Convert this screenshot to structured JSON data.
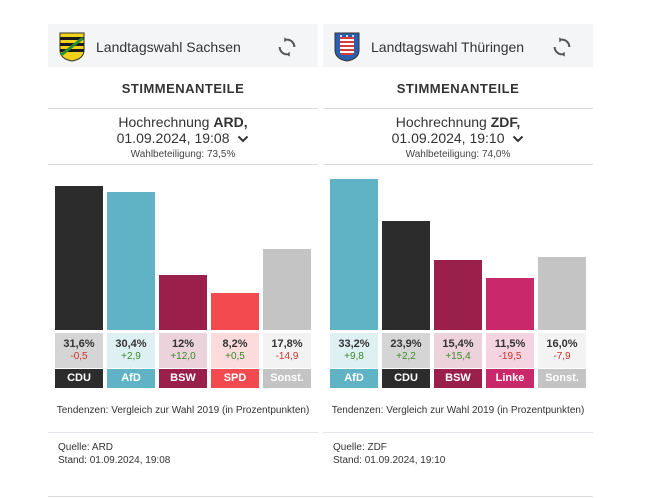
{
  "chart_data": [
    {
      "type": "bar",
      "state": "Sachsen",
      "title": "Landtagswahl Sachsen",
      "section": "STIMMENANTEILE",
      "projection_prefix": "Hochrechnung",
      "broadcaster": "ARD",
      "datetime": "01.09.2024, 19:08",
      "turnout": "Wahlbeteiligung: 73,5%",
      "categories": [
        "CDU",
        "AfD",
        "BSW",
        "SPD",
        "Sonst."
      ],
      "values": [
        31.6,
        30.4,
        12.0,
        8.2,
        17.8
      ],
      "value_labels": [
        "31,6%",
        "30,4%",
        "12%",
        "8,2%",
        "17,8%"
      ],
      "diffs": [
        "-0,5",
        "+2,9",
        "+12,0",
        "+0,5",
        "-14,9"
      ],
      "colors": [
        "#2c2c2c",
        "#5fb3c4",
        "#9b1f4b",
        "#f24a4f",
        "#c4c4c4"
      ],
      "ylim": [
        0,
        33.2
      ],
      "note": "Tendenzen: Vergleich zur Wahl 2019 (in Prozentpunkten)",
      "source": "Quelle: ARD",
      "stand": "Stand: 01.09.2024, 19:08"
    },
    {
      "type": "bar",
      "state": "Thüringen",
      "title": "Landtagswahl Thüringen",
      "section": "STIMMENANTEILE",
      "projection_prefix": "Hochrechnung",
      "broadcaster": "ZDF",
      "datetime": "01.09.2024, 19:10",
      "turnout": "Wahlbeteiligung: 74,0%",
      "categories": [
        "AfD",
        "CDU",
        "BSW",
        "Linke",
        "Sonst."
      ],
      "values": [
        33.2,
        23.9,
        15.4,
        11.5,
        16.0
      ],
      "value_labels": [
        "33,2%",
        "23,9%",
        "15,4%",
        "11,5%",
        "16,0%"
      ],
      "diffs": [
        "+9,8",
        "+2,2",
        "+15,4",
        "-19,5",
        "-7,9"
      ],
      "colors": [
        "#5fb3c4",
        "#2c2c2c",
        "#9b1f4b",
        "#c9286a",
        "#c4c4c4"
      ],
      "ylim": [
        0,
        33.2
      ],
      "note": "Tendenzen: Vergleich zur Wahl 2019 (in Prozentpunkten)",
      "source": "Quelle: ZDF",
      "stand": "Stand: 01.09.2024, 19:10"
    }
  ],
  "icons": {
    "refresh": "refresh-icon",
    "dropdown": "chevron-down-icon",
    "sachsen_crest": "sachsen-coat-of-arms-icon",
    "thueringen_crest": "thueringen-coat-of-arms-icon"
  },
  "colors": {
    "positive": "#3a8a2a",
    "negative": "#d0302a",
    "header_bg": "#f4f5f7"
  }
}
